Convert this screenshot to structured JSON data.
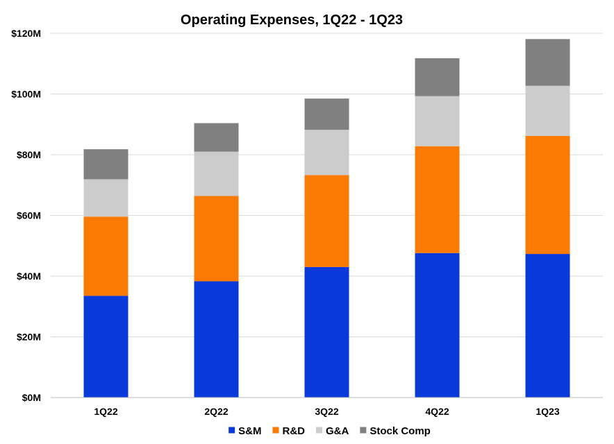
{
  "chart_data": {
    "type": "bar",
    "stacked": true,
    "title": "Operating Expenses, 1Q22 - 1Q23",
    "xlabel": "",
    "ylabel": "",
    "categories": [
      "1Q22",
      "2Q22",
      "3Q22",
      "4Q22",
      "1Q23"
    ],
    "ylim": [
      0,
      120
    ],
    "yticks": [
      0,
      20,
      40,
      60,
      80,
      100,
      120
    ],
    "ytick_labels": [
      "$0M",
      "$20M",
      "$40M",
      "$60M",
      "$80M",
      "$100M",
      "$120M"
    ],
    "grid": true,
    "legend_position": "bottom",
    "series": [
      {
        "name": "S&M",
        "color": "#0a39d9",
        "values": [
          33.5,
          38.3,
          43.0,
          47.6,
          47.3
        ]
      },
      {
        "name": "R&D",
        "color": "#fb7a03",
        "values": [
          26.1,
          28.1,
          30.3,
          35.2,
          38.9
        ]
      },
      {
        "name": "G&A",
        "color": "#cccccc",
        "values": [
          12.3,
          14.6,
          14.9,
          16.5,
          16.5
        ]
      },
      {
        "name": "Stock Comp",
        "color": "#808080",
        "values": [
          9.9,
          9.4,
          10.3,
          12.5,
          15.4
        ]
      }
    ]
  }
}
